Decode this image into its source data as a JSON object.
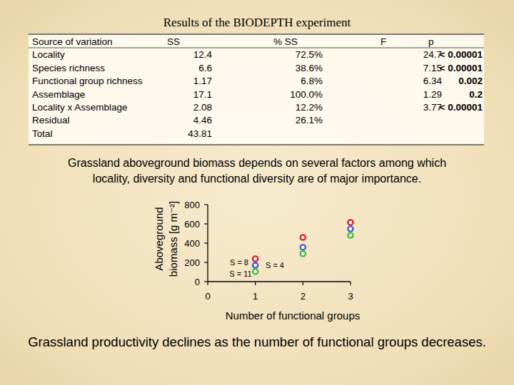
{
  "header": {
    "title": "Results of the BIODEPTH experiment"
  },
  "table": {
    "columns": [
      "Source of variation",
      "SS",
      "% SS",
      "F",
      "p"
    ],
    "rows": [
      [
        "Locality",
        "12.4",
        "72.5%",
        "24.7",
        "< 0.00001"
      ],
      [
        "Species richness",
        "6.6",
        "38.6%",
        "7.15",
        "< 0.00001"
      ],
      [
        "Functional group richness",
        "1.17",
        "6.8%",
        "6.34",
        "0.002"
      ],
      [
        "Assemblage",
        "17.1",
        "100.0%",
        "1.29",
        "0.2"
      ],
      [
        "Locality x Assemblage",
        "2.08",
        "12.2%",
        "3.77",
        "< 0.00001"
      ],
      [
        "Residual",
        "4.46",
        "26.1%"
      ],
      [
        "Total",
        "43.81"
      ]
    ]
  },
  "caption": [
    "Grassland aboveground biomass depends on several factors among which",
    "locality, diversity and functional diversity are of major importance."
  ],
  "chart_data": {
    "type": "scatter",
    "xlabel": "Number of functional groups",
    "ylabel": [
      "Aboveground",
      "biomass [g m⁻²]"
    ],
    "xlim": [
      0,
      3
    ],
    "ylim": [
      0,
      800
    ],
    "xticks": [
      0,
      1,
      2,
      3
    ],
    "yticks": [
      0,
      200,
      400,
      600,
      800
    ],
    "grid": false,
    "marker": "circle",
    "series": [
      {
        "color": "#d8262a",
        "x": [
          1,
          2,
          3
        ],
        "values": [
          237,
          459,
          615
        ]
      },
      {
        "color": "#4a5ad2",
        "x": [
          1,
          2,
          3
        ],
        "values": [
          170,
          356,
          548
        ]
      },
      {
        "color": "#3fbf3a",
        "x": [
          1,
          2,
          3
        ],
        "values": [
          104,
          289,
          481
        ]
      }
    ],
    "annotations": [
      {
        "text": "S = 8",
        "x": 0.66,
        "y": 200
      },
      {
        "text": "S = 4",
        "x": 1.41,
        "y": 170
      },
      {
        "text": "S = 11",
        "x": 0.69,
        "y": 81
      }
    ]
  },
  "conclusion": "Grassland productivity declines as the number of functional groups decreases."
}
